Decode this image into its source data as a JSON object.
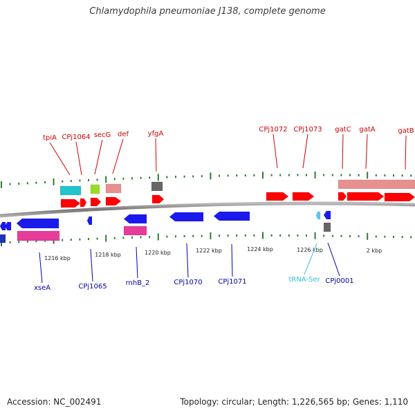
{
  "title": "Chlamydophila pneumoniae J138, complete genome",
  "footer": {
    "accession": "Accession: NC_002491",
    "summary": "Topology: circular; Length: 1,226,565 bp; Genes: 1,110"
  },
  "colors": {
    "forward_label": "#cc0000",
    "reverse_label": "#0000aa",
    "trna_label": "#33bbdd",
    "tick": "#2f7a2f",
    "backbone": "#888888",
    "forward_cds": "#ff0000",
    "reverse_cds": "#1a1aee",
    "pink_feature": "#e83c9a",
    "salmon_feature": "#e89090",
    "cyan_feature": "#22c4cc",
    "lime_feature": "#99dd22",
    "gray_feature": "#666666",
    "light_blue_feature": "#55c8ff"
  },
  "scale_labels": [
    "1216 kbp",
    "1218 kbp",
    "1220 kbp",
    "1222 kbp",
    "1224 kbp",
    "1226 kbp",
    "2 kbp"
  ],
  "forward_genes": [
    "tpiA",
    "CPj1064",
    "secG",
    "def",
    "yfgA",
    "CPj1072",
    "CPj1073",
    "gatC",
    "gatA",
    "gatB"
  ],
  "reverse_genes": [
    "xseA",
    "CPj1065",
    "rnhB_2",
    "CPj1070",
    "CPj1071",
    "tRNA-Ser",
    "CPj0001"
  ]
}
